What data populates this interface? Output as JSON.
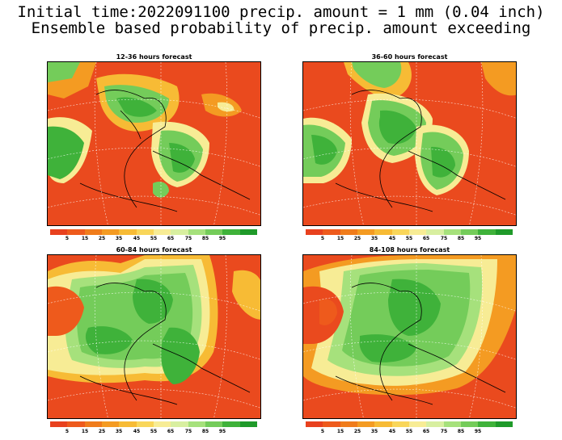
{
  "title_line1": "Initial time:2022091100 precip. amount = 1 mm (0.04 inch)",
  "title_line2": "Ensemble based probability of precip. amount exceeding",
  "panels": [
    {
      "title": "12-36 hours forecast"
    },
    {
      "title": "36-60 hours forecast"
    },
    {
      "title": "60-84 hours forecast"
    },
    {
      "title": "84-108 hours forecast"
    }
  ],
  "colorbar": {
    "colors": [
      "#e8411e",
      "#ee5a1c",
      "#f07c1b",
      "#f49b22",
      "#f7bb35",
      "#f9d65a",
      "#f7ec95",
      "#d8efa0",
      "#a6e17c",
      "#74cc5a",
      "#3fb23a",
      "#1f9a2a"
    ],
    "labels": [
      "5",
      "15",
      "25",
      "35",
      "45",
      "55",
      "65",
      "75",
      "85",
      "95"
    ]
  }
}
